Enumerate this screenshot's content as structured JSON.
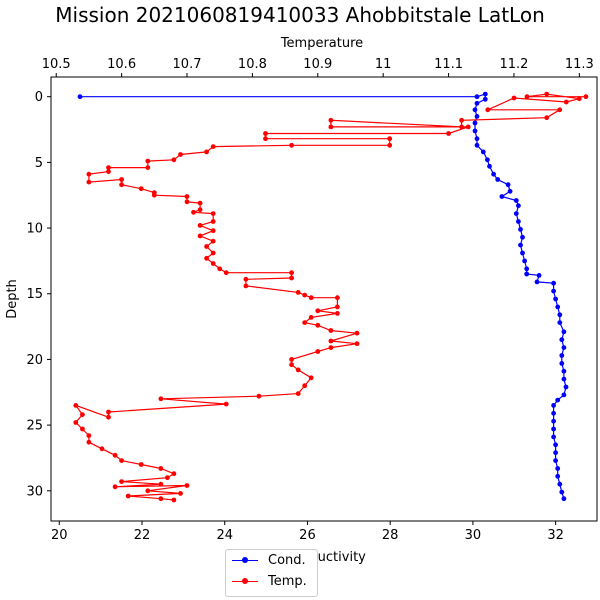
{
  "chart_data": {
    "type": "line",
    "title": "Mission 2021060819410033 Ahobbitstale LatLon",
    "ylabel": "Depth",
    "ylim": [
      32.3,
      -1.5
    ],
    "y_inverted": true,
    "yticks": [
      0,
      5,
      10,
      15,
      20,
      25,
      30
    ],
    "x_bottom": {
      "label": "Conductivity",
      "lim": [
        19.8,
        33.0
      ],
      "ticks": [
        20,
        22,
        24,
        26,
        28,
        30,
        32
      ]
    },
    "x_top": {
      "label": "Temperature",
      "lim": [
        10.492,
        11.327
      ],
      "ticks": [
        10.5,
        10.6,
        10.7,
        10.8,
        10.9,
        11.0,
        11.1,
        11.2,
        11.3
      ]
    },
    "legend_position": "lower center",
    "series": [
      {
        "name": "Cond.",
        "axis": "bottom",
        "color": "#0000ff",
        "marker": "dot",
        "points": [
          [
            20.5,
            0.0
          ],
          [
            30.1,
            0.0
          ],
          [
            30.3,
            -0.2
          ],
          [
            30.3,
            0.2
          ],
          [
            30.1,
            0.5
          ],
          [
            30.05,
            1.0
          ],
          [
            30.1,
            1.5
          ],
          [
            30.05,
            2.0
          ],
          [
            30.05,
            2.6
          ],
          [
            30.1,
            3.2
          ],
          [
            30.1,
            3.7
          ],
          [
            30.25,
            4.2
          ],
          [
            30.35,
            4.8
          ],
          [
            30.4,
            5.3
          ],
          [
            30.5,
            5.9
          ],
          [
            30.6,
            6.3
          ],
          [
            30.85,
            6.7
          ],
          [
            30.9,
            7.2
          ],
          [
            30.7,
            7.6
          ],
          [
            31.05,
            7.9
          ],
          [
            31.1,
            8.3
          ],
          [
            31.05,
            8.9
          ],
          [
            31.1,
            9.5
          ],
          [
            31.15,
            10.1
          ],
          [
            31.2,
            10.7
          ],
          [
            31.15,
            11.3
          ],
          [
            31.2,
            11.9
          ],
          [
            31.25,
            12.5
          ],
          [
            31.3,
            13.1
          ],
          [
            31.3,
            13.5
          ],
          [
            31.6,
            13.6
          ],
          [
            31.55,
            14.1
          ],
          [
            31.95,
            14.2
          ],
          [
            31.95,
            14.8
          ],
          [
            32.0,
            15.4
          ],
          [
            32.05,
            16.0
          ],
          [
            32.1,
            16.6
          ],
          [
            32.1,
            17.2
          ],
          [
            32.2,
            17.9
          ],
          [
            32.15,
            18.5
          ],
          [
            32.2,
            19.1
          ],
          [
            32.15,
            19.7
          ],
          [
            32.15,
            20.3
          ],
          [
            32.2,
            20.9
          ],
          [
            32.2,
            21.5
          ],
          [
            32.25,
            22.1
          ],
          [
            32.2,
            22.7
          ],
          [
            32.05,
            23.1
          ],
          [
            31.95,
            23.5
          ],
          [
            31.95,
            24.1
          ],
          [
            31.95,
            24.7
          ],
          [
            31.95,
            25.3
          ],
          [
            31.95,
            25.9
          ],
          [
            32.0,
            26.5
          ],
          [
            32.0,
            27.1
          ],
          [
            32.0,
            27.7
          ],
          [
            32.05,
            28.3
          ],
          [
            32.05,
            28.9
          ],
          [
            32.1,
            29.5
          ],
          [
            32.15,
            30.1
          ],
          [
            32.2,
            30.6
          ]
        ]
      },
      {
        "name": "Temp.",
        "axis": "top",
        "color": "#ff0000",
        "marker": "dot",
        "points": [
          [
            11.31,
            0.0
          ],
          [
            11.22,
            0.0
          ],
          [
            11.25,
            -0.2
          ],
          [
            11.3,
            0.15
          ],
          [
            11.28,
            0.4
          ],
          [
            11.2,
            0.1
          ],
          [
            11.16,
            1.0
          ],
          [
            11.27,
            1.0
          ],
          [
            11.25,
            1.6
          ],
          [
            11.12,
            1.8
          ],
          [
            11.12,
            2.3
          ],
          [
            10.92,
            1.8
          ],
          [
            10.92,
            2.3
          ],
          [
            11.13,
            2.3
          ],
          [
            11.1,
            2.8
          ],
          [
            10.82,
            2.8
          ],
          [
            10.82,
            3.2
          ],
          [
            11.01,
            3.2
          ],
          [
            11.01,
            3.7
          ],
          [
            10.86,
            3.7
          ],
          [
            10.74,
            3.8
          ],
          [
            10.73,
            4.2
          ],
          [
            10.69,
            4.4
          ],
          [
            10.68,
            4.8
          ],
          [
            10.64,
            4.9
          ],
          [
            10.64,
            5.4
          ],
          [
            10.58,
            5.4
          ],
          [
            10.58,
            5.7
          ],
          [
            10.55,
            5.9
          ],
          [
            10.55,
            6.5
          ],
          [
            10.6,
            6.3
          ],
          [
            10.6,
            6.7
          ],
          [
            10.63,
            7.0
          ],
          [
            10.65,
            7.3
          ],
          [
            10.65,
            7.5
          ],
          [
            10.7,
            7.6
          ],
          [
            10.7,
            8.0
          ],
          [
            10.72,
            8.1
          ],
          [
            10.72,
            8.6
          ],
          [
            10.71,
            8.8
          ],
          [
            10.74,
            8.9
          ],
          [
            10.74,
            9.5
          ],
          [
            10.72,
            9.8
          ],
          [
            10.74,
            10.2
          ],
          [
            10.72,
            10.6
          ],
          [
            10.74,
            11.0
          ],
          [
            10.73,
            11.4
          ],
          [
            10.74,
            11.9
          ],
          [
            10.73,
            12.3
          ],
          [
            10.74,
            12.7
          ],
          [
            10.75,
            13.1
          ],
          [
            10.76,
            13.4
          ],
          [
            10.86,
            13.4
          ],
          [
            10.86,
            13.8
          ],
          [
            10.79,
            13.9
          ],
          [
            10.79,
            14.4
          ],
          [
            10.87,
            14.9
          ],
          [
            10.88,
            15.1
          ],
          [
            10.89,
            15.3
          ],
          [
            10.93,
            15.3
          ],
          [
            10.93,
            16.0
          ],
          [
            10.9,
            16.3
          ],
          [
            10.93,
            16.5
          ],
          [
            10.89,
            16.8
          ],
          [
            10.88,
            17.2
          ],
          [
            10.9,
            17.4
          ],
          [
            10.92,
            17.8
          ],
          [
            10.96,
            18.0
          ],
          [
            10.92,
            18.6
          ],
          [
            10.96,
            18.8
          ],
          [
            10.92,
            19.1
          ],
          [
            10.9,
            19.4
          ],
          [
            10.86,
            20.0
          ],
          [
            10.86,
            20.4
          ],
          [
            10.87,
            20.8
          ],
          [
            10.89,
            21.4
          ],
          [
            10.88,
            22.0
          ],
          [
            10.87,
            22.6
          ],
          [
            10.81,
            22.8
          ],
          [
            10.66,
            23.0
          ],
          [
            10.76,
            23.4
          ],
          [
            10.58,
            24.0
          ],
          [
            10.58,
            24.4
          ],
          [
            10.53,
            23.5
          ],
          [
            10.54,
            24.2
          ],
          [
            10.53,
            24.8
          ],
          [
            10.54,
            25.3
          ],
          [
            10.55,
            25.8
          ],
          [
            10.55,
            26.3
          ],
          [
            10.57,
            26.8
          ],
          [
            10.59,
            27.3
          ],
          [
            10.6,
            27.7
          ],
          [
            10.63,
            28.0
          ],
          [
            10.66,
            28.3
          ],
          [
            10.68,
            28.7
          ],
          [
            10.67,
            29.0
          ],
          [
            10.6,
            29.3
          ],
          [
            10.66,
            29.5
          ],
          [
            10.59,
            29.7
          ],
          [
            10.7,
            29.6
          ],
          [
            10.64,
            30.0
          ],
          [
            10.69,
            30.2
          ],
          [
            10.61,
            30.4
          ],
          [
            10.66,
            30.6
          ],
          [
            10.68,
            30.7
          ]
        ]
      }
    ]
  }
}
